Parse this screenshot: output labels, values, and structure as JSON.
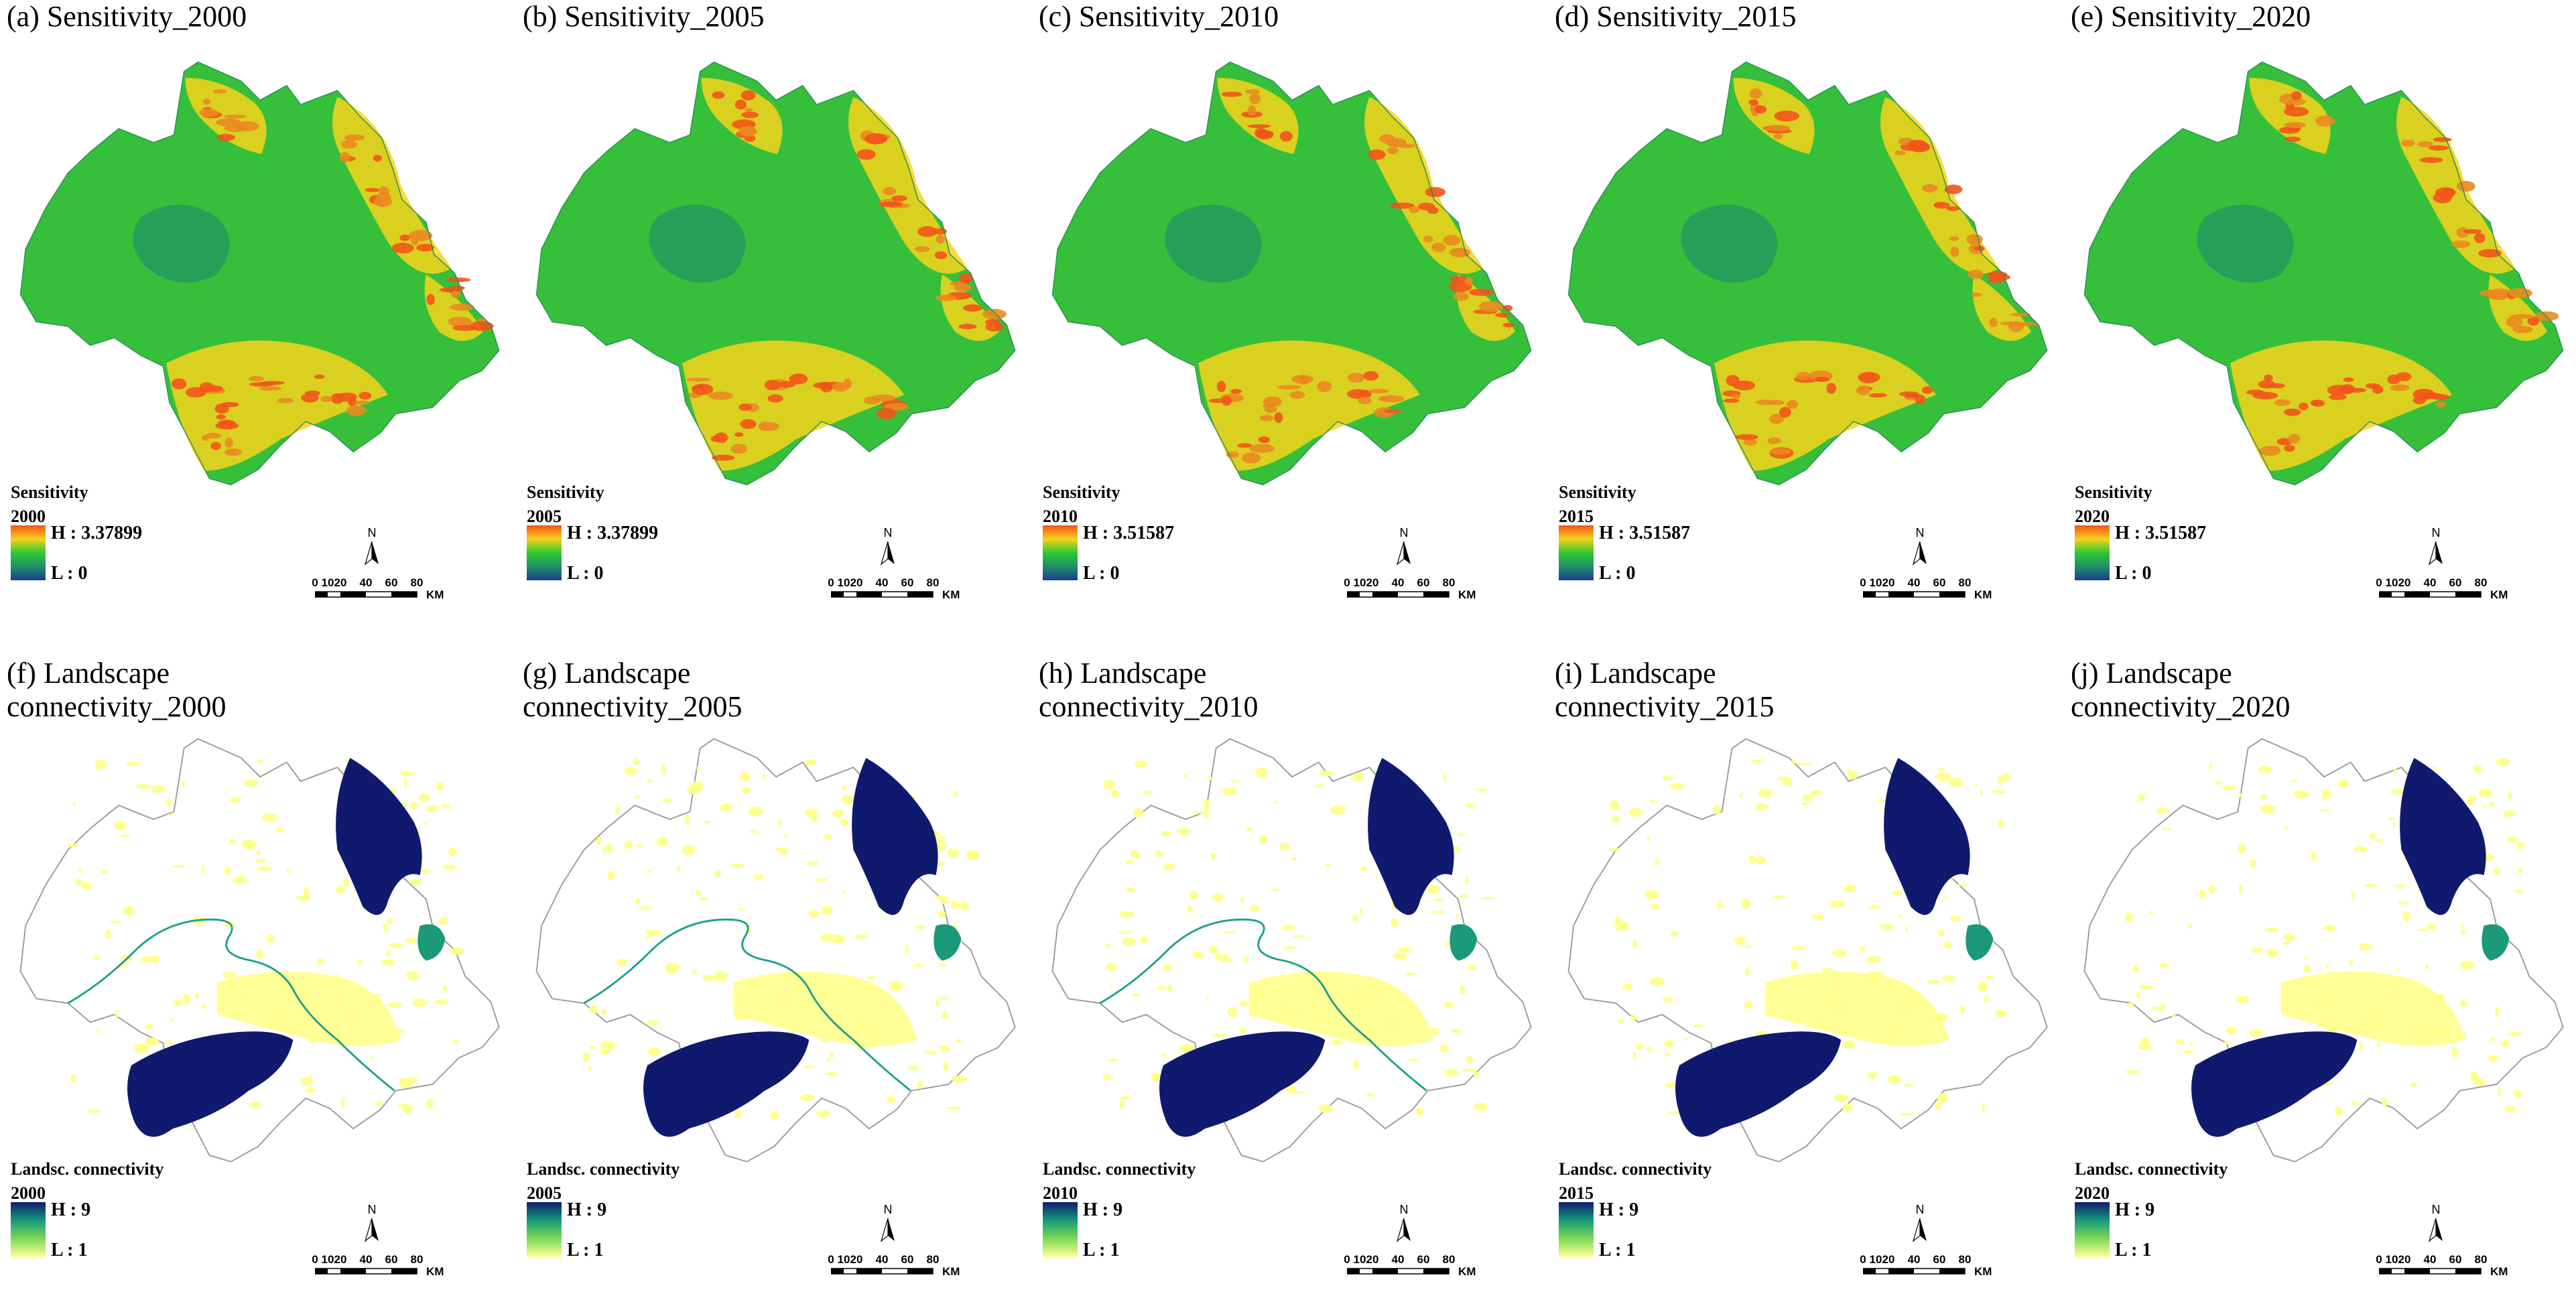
{
  "sensitivity_legend_title": "Sensitivity",
  "connectivity_legend_title": "Landsc. connectivity",
  "scale": {
    "ticks": [
      "0",
      "10",
      "20",
      "40",
      "60",
      "80"
    ],
    "unit": "KM"
  },
  "north_label": "N",
  "colors": {
    "sensitivity_ramp": [
      "#f2541b",
      "#f7d21c",
      "#2fc832",
      "#1f8f68",
      "#1b3f8f"
    ],
    "connectivity_ramp": [
      "#0f1a6e",
      "#159b7a",
      "#7ed957",
      "#ffff99"
    ],
    "connectivity_high": "#0f1a6e",
    "connectivity_mid": "#1a9a78",
    "connectivity_low": "#ffff8a",
    "river": "#1aa08a",
    "boundary": "#9a9a9a"
  },
  "panels": [
    {
      "label": "(a) Sensitivity_2000",
      "type": "sensitivity",
      "year": "2000",
      "high": "H : 3.37899",
      "low": "L : 0"
    },
    {
      "label": "(b) Sensitivity_2005",
      "type": "sensitivity",
      "year": "2005",
      "high": "H : 3.37899",
      "low": "L : 0"
    },
    {
      "label": "(c) Sensitivity_2010",
      "type": "sensitivity",
      "year": "2010",
      "high": "H : 3.51587",
      "low": "L : 0"
    },
    {
      "label": "(d) Sensitivity_2015",
      "type": "sensitivity",
      "year": "2015",
      "high": "H : 3.51587",
      "low": "L : 0"
    },
    {
      "label": "(e) Sensitivity_2020",
      "type": "sensitivity",
      "year": "2020",
      "high": "H : 3.51587",
      "low": "L : 0"
    },
    {
      "label": "(f) Landscape\nconnectivity_2000",
      "type": "connectivity",
      "year": "2000",
      "high": "H : 9",
      "low": "L : 1",
      "river": true
    },
    {
      "label": "(g) Landscape\nconnectivity_2005",
      "type": "connectivity",
      "year": "2005",
      "high": "H : 9",
      "low": "L : 1",
      "river": true
    },
    {
      "label": "(h) Landscape\nconnectivity_2010",
      "type": "connectivity",
      "year": "2010",
      "high": "H : 9",
      "low": "L : 1",
      "river": true
    },
    {
      "label": "(i) Landscape\nconnectivity_2015",
      "type": "connectivity",
      "year": "2015",
      "high": "H : 9",
      "low": "L : 1",
      "river": false
    },
    {
      "label": "(j) Landscape\nconnectivity_2020",
      "type": "connectivity",
      "year": "2020",
      "high": "H : 9",
      "low": "L : 1",
      "river": false
    }
  ]
}
